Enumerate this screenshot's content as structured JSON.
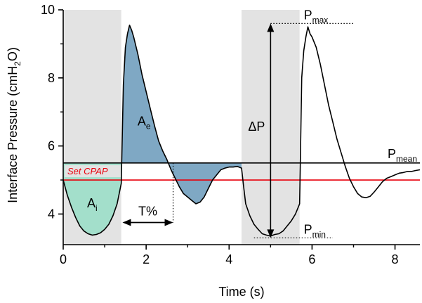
{
  "chart_data": {
    "type": "line",
    "xlabel": "Time (s)",
    "ylabel": {
      "main": "Interface Pressure (cmH",
      "sub": "2",
      "tail": "O)"
    },
    "xlim": [
      0,
      8.6
    ],
    "ylim": [
      3.1,
      10
    ],
    "xticks": [
      0,
      2,
      4,
      6,
      8
    ],
    "yticks": [
      4,
      6,
      8,
      10
    ],
    "grid": false,
    "pressure_trace": {
      "x": [
        0.0,
        0.1,
        0.2,
        0.3,
        0.4,
        0.5,
        0.6,
        0.7,
        0.8,
        0.9,
        1.0,
        1.1,
        1.2,
        1.3,
        1.4,
        1.41,
        1.45,
        1.5,
        1.55,
        1.6,
        1.65,
        1.7,
        1.8,
        1.9,
        2.0,
        2.1,
        2.2,
        2.3,
        2.4,
        2.5,
        2.6,
        2.7,
        2.8,
        2.9,
        3.0,
        3.1,
        3.2,
        3.3,
        3.4,
        3.5,
        3.6,
        3.7,
        3.8,
        3.9,
        4.0,
        4.1,
        4.2,
        4.3,
        4.35,
        4.4,
        4.5,
        4.6,
        4.7,
        4.8,
        4.9,
        5.0,
        5.1,
        5.2,
        5.3,
        5.4,
        5.5,
        5.6,
        5.7,
        5.71,
        5.75,
        5.8,
        5.85,
        5.9,
        5.95,
        6.0,
        6.1,
        6.2,
        6.3,
        6.4,
        6.5,
        6.6,
        6.7,
        6.8,
        6.9,
        7.0,
        7.1,
        7.2,
        7.3,
        7.4,
        7.5,
        7.6,
        7.7,
        7.8,
        7.9,
        8.0,
        8.1,
        8.2,
        8.3,
        8.4,
        8.5,
        8.6
      ],
      "y": [
        5.0,
        4.55,
        4.2,
        3.9,
        3.65,
        3.5,
        3.42,
        3.38,
        3.4,
        3.45,
        3.55,
        3.7,
        3.95,
        4.3,
        4.9,
        5.5,
        7.8,
        8.9,
        9.3,
        9.55,
        9.4,
        9.2,
        8.7,
        8.1,
        7.6,
        7.1,
        6.6,
        6.15,
        5.85,
        5.6,
        5.3,
        5.05,
        4.8,
        4.6,
        4.5,
        4.4,
        4.3,
        4.35,
        4.5,
        4.75,
        5.0,
        5.15,
        5.3,
        5.35,
        5.38,
        5.38,
        5.4,
        5.35,
        4.8,
        4.3,
        3.95,
        3.7,
        3.55,
        3.42,
        3.38,
        3.35,
        3.4,
        3.42,
        3.5,
        3.65,
        3.8,
        4.0,
        4.3,
        5.0,
        8.0,
        8.8,
        9.2,
        9.5,
        9.3,
        9.2,
        8.9,
        8.4,
        7.8,
        7.2,
        6.7,
        6.2,
        5.8,
        5.4,
        5.05,
        4.8,
        4.6,
        4.5,
        4.48,
        4.52,
        4.65,
        4.8,
        4.95,
        5.05,
        5.1,
        5.15,
        5.2,
        5.22,
        5.25,
        5.25,
        5.28,
        5.3
      ]
    },
    "reference_lines": [
      {
        "label": "P",
        "label_sub": "mean",
        "y": 5.5,
        "color": "#000000"
      },
      {
        "label": "Set CPAP",
        "y": 5.0,
        "color": "#e8000b"
      }
    ],
    "shaded_spans": [
      {
        "x": [
          0,
          1.4
        ],
        "color": "#e3e3e3"
      },
      {
        "x": [
          4.3,
          5.7
        ],
        "color": "#e3e3e3"
      }
    ],
    "area_fills": [
      {
        "label": "A",
        "label_sub": "i",
        "color": "#a3dfcb",
        "x_range": [
          0,
          1.4
        ],
        "baseline": 5.5
      },
      {
        "label": "A",
        "label_sub": "e",
        "color": "#7fa8c4",
        "x_range": [
          1.41,
          4.3
        ],
        "baseline": 5.5
      }
    ],
    "annotations": [
      {
        "label": "P",
        "label_sub": "max",
        "x": 5.92,
        "y": 9.6
      },
      {
        "label": "P",
        "label_sub": "min",
        "x": 5.0,
        "y": 3.3
      },
      {
        "label": "ΔP",
        "x": 5.0,
        "y_from": 3.3,
        "y_to": 9.6
      },
      {
        "label": "T%",
        "x_from": 1.43,
        "x_to": 2.65,
        "y": 3.75
      }
    ]
  }
}
